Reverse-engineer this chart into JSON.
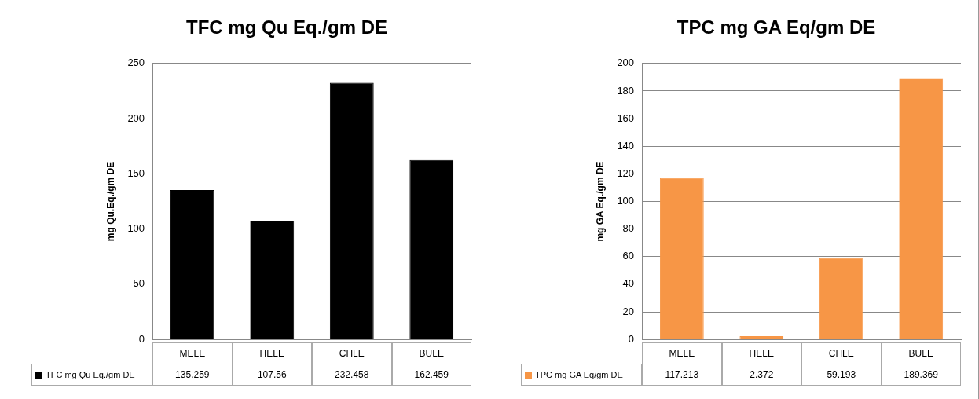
{
  "chart_data": [
    {
      "type": "bar",
      "title": "TFC mg Qu Eq./gm DE",
      "ylabel": "mg Qu.Eq./gm DE",
      "categories": [
        "MELE",
        "HELE",
        "CHLE",
        "BULE"
      ],
      "series": [
        {
          "name": "TFC mg Qu Eq./gm DE",
          "color": "#000000",
          "values": [
            135.259,
            107.56,
            232.458,
            162.459
          ]
        }
      ],
      "ylim": [
        0,
        250
      ],
      "yticks": [
        0,
        50,
        100,
        150,
        200,
        250
      ],
      "grid": "y",
      "legend": "bottom",
      "data_labels": true
    },
    {
      "type": "bar",
      "title": "TPC mg GA Eq/gm DE",
      "ylabel": "mg GA Eq./gm DE",
      "categories": [
        "MELE",
        "HELE",
        "CHLE",
        "BULE"
      ],
      "series": [
        {
          "name": "TPC mg GA Eq/gm DE",
          "color": "#f79646",
          "values": [
            117.213,
            2.372,
            59.193,
            189.369
          ]
        }
      ],
      "ylim": [
        0,
        200
      ],
      "yticks": [
        0,
        20,
        40,
        60,
        80,
        100,
        120,
        140,
        160,
        180,
        200
      ],
      "grid": "y",
      "legend": "bottom",
      "data_labels": true
    }
  ]
}
